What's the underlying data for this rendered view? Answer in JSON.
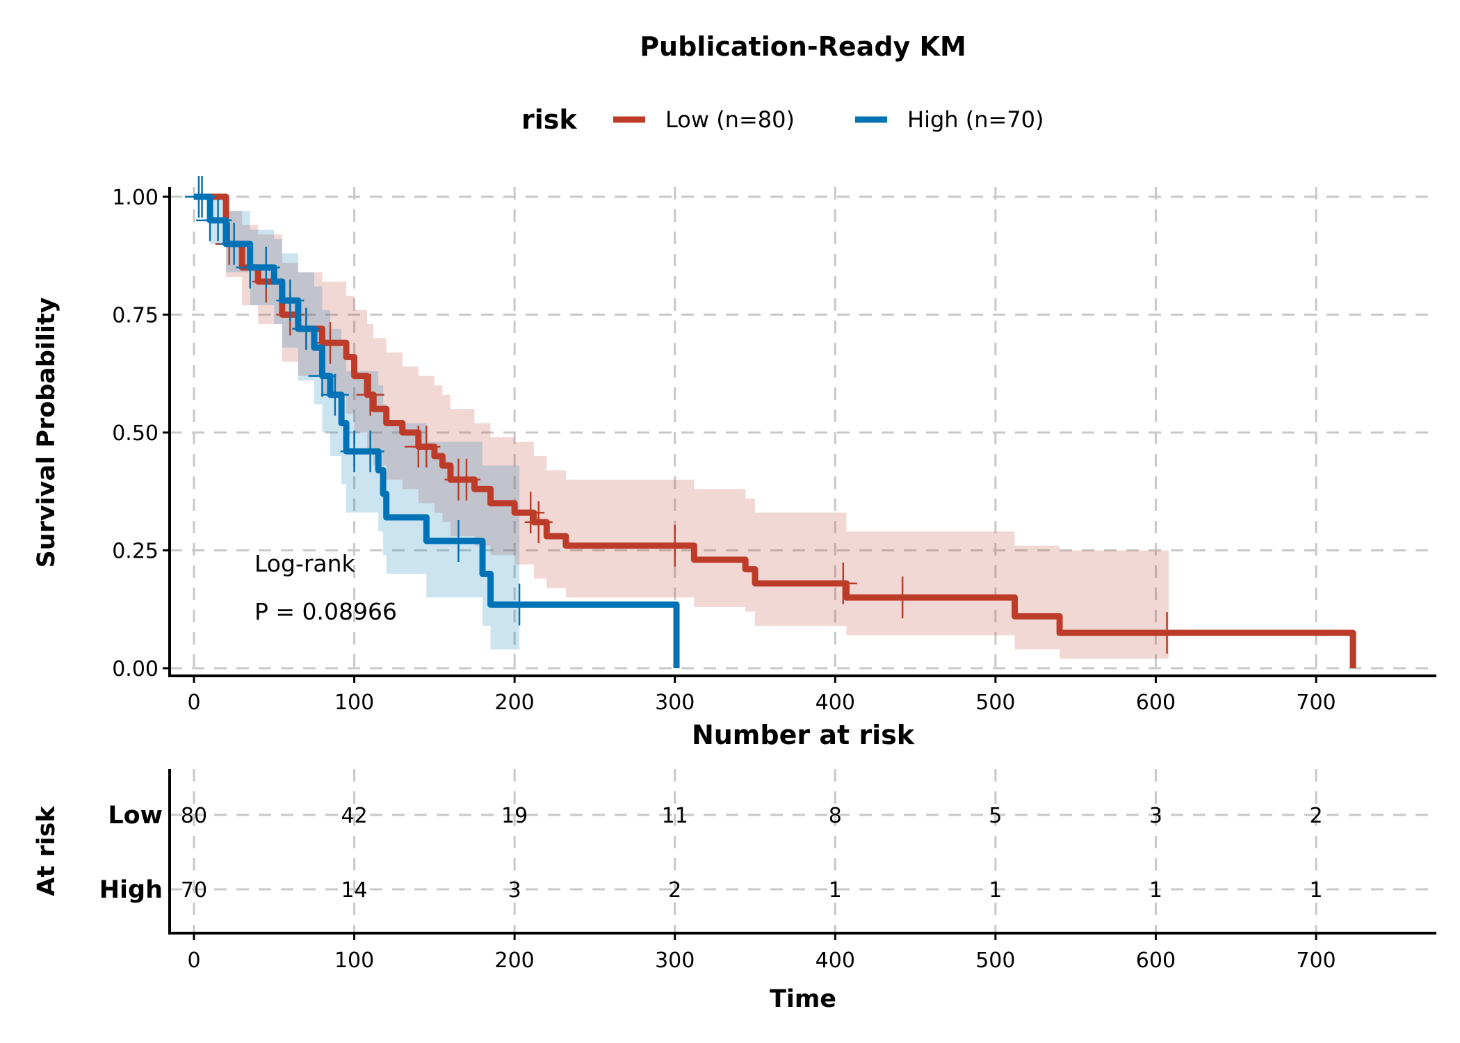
{
  "chart_data": {
    "type": "line",
    "title": "Publication-Ready KM",
    "legend": {
      "title": "risk",
      "position": "top",
      "entries": [
        "Low (n=80)",
        "High (n=70)"
      ]
    },
    "xlabel": "Time",
    "ylabel": "Survival Probability",
    "xlim": [
      -15,
      770
    ],
    "ylim": [
      -0.02,
      1.02
    ],
    "xticks": [
      0,
      100,
      200,
      300,
      400,
      500,
      600,
      700
    ],
    "xtick_labels": [
      "0",
      "100",
      "200",
      "300",
      "400",
      "500",
      "600",
      "700"
    ],
    "yticks": [
      0,
      0.25,
      0.5,
      0.75,
      1
    ],
    "ytick_labels": [
      "0.00",
      "0.25",
      "0.50",
      "0.75",
      "1.00"
    ],
    "grid": true,
    "annotation": [
      "Log-rank",
      "P = 0.08966"
    ],
    "series": [
      {
        "name": "Low (n=80)",
        "color": "#BC3C29",
        "t": [
          0,
          20,
          30,
          40,
          55,
          65,
          80,
          95,
          100,
          108,
          112,
          120,
          130,
          140,
          150,
          155,
          160,
          175,
          185,
          200,
          212,
          220,
          232,
          312,
          344,
          350,
          407,
          512,
          540,
          723
        ],
        "surv": [
          1,
          0.9,
          0.85,
          0.82,
          0.75,
          0.72,
          0.69,
          0.66,
          0.62,
          0.58,
          0.55,
          0.52,
          0.5,
          0.47,
          0.45,
          0.43,
          0.4,
          0.38,
          0.35,
          0.33,
          0.31,
          0.28,
          0.26,
          0.23,
          0.21,
          0.18,
          0.15,
          0.11,
          0.075,
          0
        ],
        "lower": [
          1,
          0.83,
          0.77,
          0.73,
          0.65,
          0.62,
          0.58,
          0.54,
          0.5,
          0.46,
          0.43,
          0.4,
          0.38,
          0.35,
          0.33,
          0.31,
          0.28,
          0.26,
          0.24,
          0.22,
          0.19,
          0.17,
          0.15,
          0.13,
          0.12,
          0.09,
          0.07,
          0.04,
          0.02,
          0.02
        ],
        "upper": [
          1,
          0.97,
          0.94,
          0.92,
          0.86,
          0.84,
          0.82,
          0.79,
          0.76,
          0.73,
          0.7,
          0.67,
          0.64,
          0.62,
          0.6,
          0.58,
          0.55,
          0.52,
          0.49,
          0.48,
          0.45,
          0.42,
          0.4,
          0.38,
          0.36,
          0.33,
          0.29,
          0.26,
          0.25,
          0.25
        ],
        "ci_end": 608,
        "censor": [
          22,
          45,
          60,
          70,
          85,
          110,
          140,
          145,
          165,
          170,
          210,
          215,
          300,
          405,
          442,
          607
        ]
      },
      {
        "name": "High (n=70)",
        "color": "#0072B5",
        "t": [
          0,
          10,
          20,
          35,
          50,
          55,
          65,
          75,
          80,
          85,
          92,
          95,
          115,
          118,
          120,
          145,
          180,
          185,
          301
        ],
        "surv": [
          1,
          0.95,
          0.9,
          0.85,
          0.82,
          0.78,
          0.72,
          0.68,
          0.62,
          0.58,
          0.52,
          0.46,
          0.42,
          0.37,
          0.32,
          0.27,
          0.2,
          0.135,
          0
        ],
        "lower": [
          1,
          0.9,
          0.84,
          0.77,
          0.73,
          0.68,
          0.61,
          0.56,
          0.5,
          0.45,
          0.39,
          0.33,
          0.29,
          0.24,
          0.2,
          0.15,
          0.09,
          0.04,
          0.04
        ],
        "upper": [
          1,
          1,
          0.97,
          0.93,
          0.91,
          0.88,
          0.84,
          0.81,
          0.76,
          0.72,
          0.68,
          0.63,
          0.6,
          0.56,
          0.52,
          0.48,
          0.43,
          0.43,
          0.43
        ],
        "ci_end": 203,
        "censor": [
          3,
          5,
          10,
          15,
          25,
          35,
          45,
          60,
          70,
          80,
          88,
          100,
          110,
          165,
          203
        ]
      }
    ],
    "risk_table": {
      "title": "Number at risk",
      "ylabel": "At risk",
      "xlabel": "Time",
      "times": [
        0,
        100,
        200,
        300,
        400,
        500,
        600,
        700
      ],
      "rows": [
        {
          "label": "Low",
          "values": [
            "80",
            "42",
            "19",
            "11",
            "8",
            "5",
            "3",
            "2"
          ]
        },
        {
          "label": "High",
          "values": [
            "70",
            "14",
            "3",
            "2",
            "1",
            "1",
            "1",
            "1"
          ]
        }
      ]
    }
  }
}
